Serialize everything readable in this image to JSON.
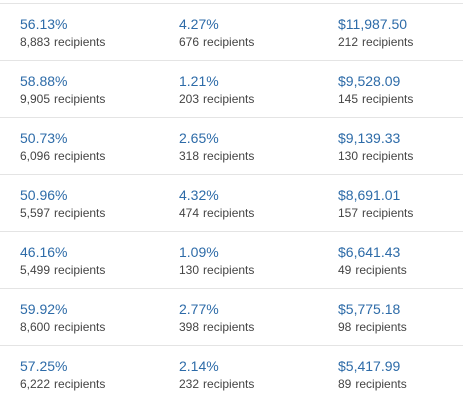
{
  "colors": {
    "value_text": "#2d6ba8",
    "sub_text": "#444444",
    "divider": "#e4e4e4"
  },
  "recipients_label": "recipients",
  "rows": [
    {
      "open_rate": "56.13%",
      "open_count": "8,883",
      "click_rate": "4.27%",
      "click_count": "676",
      "revenue": "$11,987.50",
      "revenue_count": "212"
    },
    {
      "open_rate": "58.88%",
      "open_count": "9,905",
      "click_rate": "1.21%",
      "click_count": "203",
      "revenue": "$9,528.09",
      "revenue_count": "145"
    },
    {
      "open_rate": "50.73%",
      "open_count": "6,096",
      "click_rate": "2.65%",
      "click_count": "318",
      "revenue": "$9,139.33",
      "revenue_count": "130"
    },
    {
      "open_rate": "50.96%",
      "open_count": "5,597",
      "click_rate": "4.32%",
      "click_count": "474",
      "revenue": "$8,691.01",
      "revenue_count": "157"
    },
    {
      "open_rate": "46.16%",
      "open_count": "5,499",
      "click_rate": "1.09%",
      "click_count": "130",
      "revenue": "$6,641.43",
      "revenue_count": "49"
    },
    {
      "open_rate": "59.92%",
      "open_count": "8,600",
      "click_rate": "2.77%",
      "click_count": "398",
      "revenue": "$5,775.18",
      "revenue_count": "98"
    },
    {
      "open_rate": "57.25%",
      "open_count": "6,222",
      "click_rate": "2.14%",
      "click_count": "232",
      "revenue": "$5,417.99",
      "revenue_count": "89"
    }
  ]
}
